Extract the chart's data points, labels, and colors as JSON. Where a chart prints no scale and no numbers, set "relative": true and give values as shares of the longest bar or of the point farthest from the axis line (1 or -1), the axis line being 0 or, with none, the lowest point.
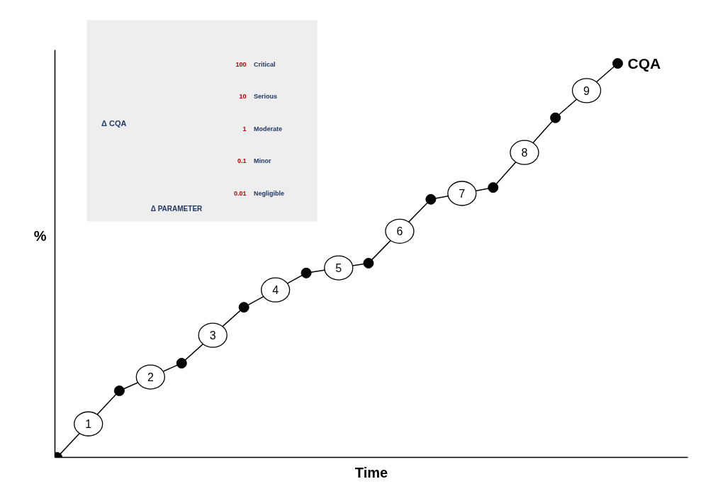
{
  "chart_data": [
    {
      "type": "line",
      "xlabel": "Time",
      "ylabel": "%",
      "relative": true,
      "marker": "circle",
      "categories": [
        null,
        null,
        null,
        null,
        null,
        null,
        null,
        null,
        null,
        null
      ],
      "series": [
        {
          "name": "CQA",
          "color": "#000000",
          "values": [
            0,
            0.169,
            0.239,
            0.381,
            0.468,
            0.493,
            0.655,
            0.685,
            0.862,
            1
          ]
        }
      ],
      "annotations": [
        {
          "text": "1",
          "y": 0.085
        },
        {
          "text": "2",
          "y": 0.204
        },
        {
          "text": "3",
          "y": 0.31
        },
        {
          "text": "4",
          "y": 0.425
        },
        {
          "text": "5",
          "y": 0.481
        },
        {
          "text": "6",
          "y": 0.574
        },
        {
          "text": "7",
          "y": 0.67
        },
        {
          "text": "8",
          "y": 0.774
        },
        {
          "text": "9",
          "y": 0.931
        }
      ]
    },
    {
      "type": "other",
      "xlabel": "Δ PARAMETER",
      "ylabel": "Δ CQA",
      "annotations": [
        "100",
        "Critical",
        "10",
        "Serious",
        "1",
        "Moderate",
        "0.1",
        "Minor",
        "0.01",
        "Negligible"
      ]
    }
  ]
}
